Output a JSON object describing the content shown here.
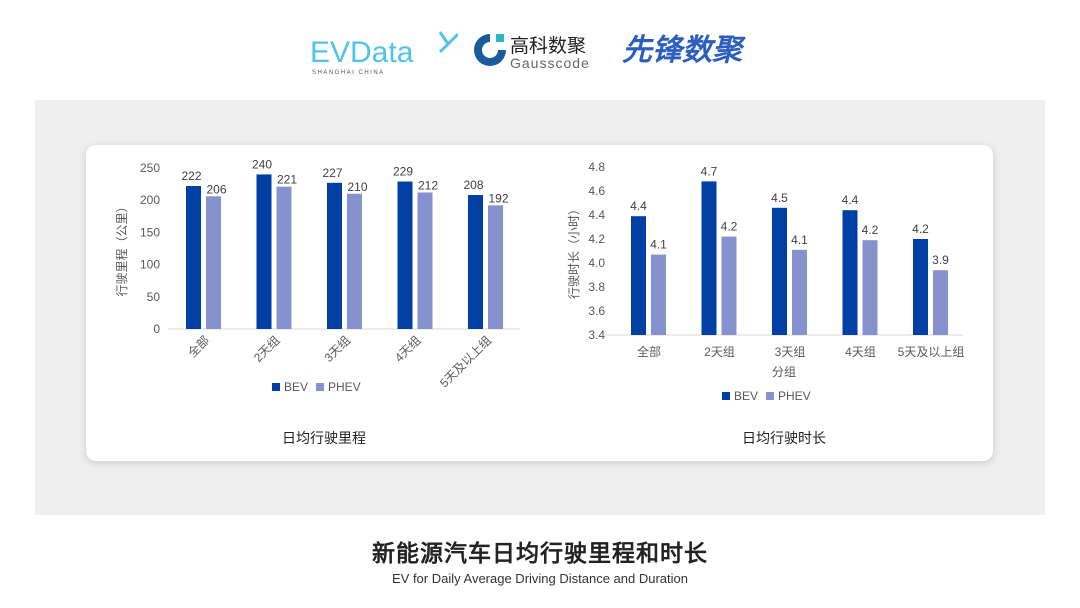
{
  "logos": {
    "evdata": {
      "text": "EVData",
      "sub": "SHANGHAI CHINA"
    },
    "gausscode": {
      "cn": "高科数聚",
      "en": "Gausscode"
    },
    "xianfeng": {
      "text": "先锋数聚"
    }
  },
  "colors": {
    "bev": "#003fa3",
    "phev": "#8592cd",
    "panel": "#efefef"
  },
  "chart_data": [
    {
      "type": "bar",
      "title": "日均行驶里程",
      "ylabel": "行驶里程（公里）",
      "xlabel": "",
      "categories": [
        "全部",
        "2天组",
        "3天组",
        "4天组",
        "5天及以上组"
      ],
      "ylim": [
        0,
        250
      ],
      "yticks": [
        0,
        50,
        100,
        150,
        200,
        250
      ],
      "series": [
        {
          "name": "BEV",
          "values": [
            222,
            240,
            227,
            229,
            208
          ],
          "labels": [
            "222",
            "240",
            "227",
            "229",
            "208"
          ]
        },
        {
          "name": "PHEV",
          "values": [
            206,
            221,
            210,
            212,
            192
          ],
          "labels": [
            "206",
            "221",
            "210",
            "212",
            "192"
          ]
        }
      ],
      "legend": "bottom",
      "grid": false,
      "xtick_rotation": "rotated"
    },
    {
      "type": "bar",
      "title": "日均行驶时长",
      "ylabel": "行驶时长（小时）",
      "xlabel": "分组",
      "categories": [
        "全部",
        "2天组",
        "3天组",
        "4天组",
        "5天及以上组"
      ],
      "ylim": [
        3.4,
        4.8
      ],
      "yticks": [
        "3.4",
        "3.6",
        "3.8",
        "4.0",
        "4.2",
        "4.4",
        "4.6",
        "4.8"
      ],
      "series": [
        {
          "name": "BEV",
          "values": [
            4.39,
            4.68,
            4.46,
            4.44,
            4.2
          ],
          "labels": [
            "4.4",
            "4.7",
            "4.5",
            "4.4",
            "4.2"
          ]
        },
        {
          "name": "PHEV",
          "values": [
            4.07,
            4.22,
            4.11,
            4.19,
            3.94
          ],
          "labels": [
            "4.1",
            "4.2",
            "4.1",
            "4.2",
            "3.9"
          ]
        }
      ],
      "legend": "bottom",
      "grid": false,
      "xtick_rotation": "horizontal"
    }
  ],
  "footer": {
    "title": "新能源汽车日均行驶里程和时长",
    "subtitle": "EV for Daily Average Driving Distance and Duration"
  }
}
